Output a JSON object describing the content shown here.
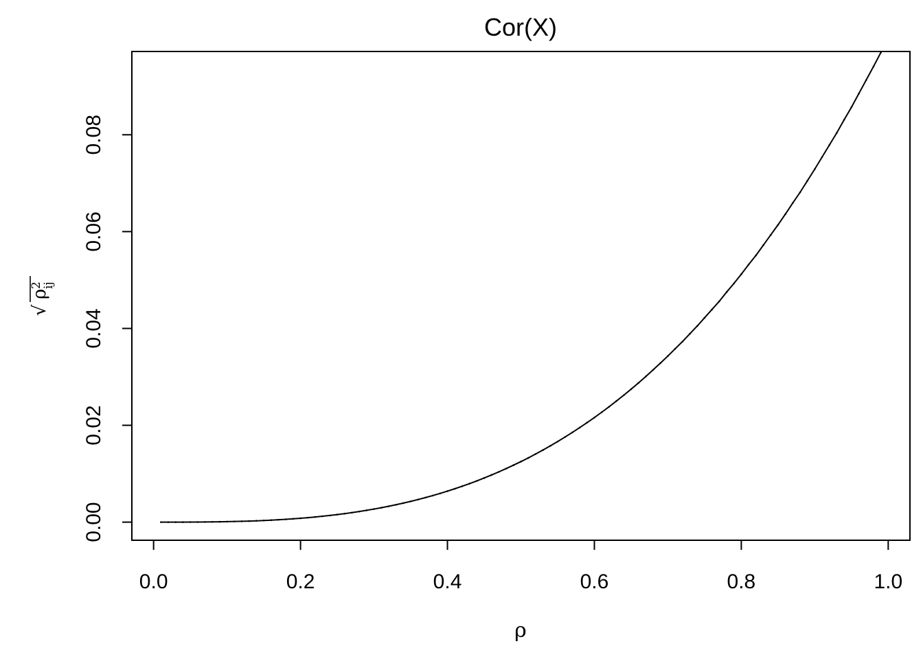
{
  "chart_data": {
    "type": "line",
    "title": "Cor(X)",
    "xlabel": "ρ",
    "ylabel": {
      "base": "ρ",
      "superscript": "2",
      "subscript": "ij",
      "radical": "√"
    },
    "xlim": [
      -0.0296,
      1.0296
    ],
    "ylim": [
      -0.00374,
      0.0972
    ],
    "x_ticks": [
      0.0,
      0.2,
      0.4,
      0.6,
      0.8,
      1.0
    ],
    "x_tick_labels": [
      "0.0",
      "0.2",
      "0.4",
      "0.6",
      "0.8",
      "1.0"
    ],
    "y_ticks": [
      0.0,
      0.02,
      0.04,
      0.06,
      0.08
    ],
    "y_tick_labels": [
      "0.00",
      "0.02",
      "0.04",
      "0.06",
      "0.08"
    ],
    "grid": false,
    "series": [
      {
        "x": [
          0.01,
          0.02,
          0.03,
          0.04,
          0.05,
          0.06,
          0.07,
          0.08,
          0.09,
          0.1,
          0.11,
          0.12,
          0.13,
          0.14,
          0.15,
          0.16,
          0.17,
          0.18,
          0.19,
          0.2,
          0.21,
          0.22,
          0.23,
          0.24,
          0.25,
          0.26,
          0.27,
          0.28,
          0.29,
          0.3,
          0.31,
          0.32,
          0.33,
          0.34,
          0.35,
          0.36,
          0.37,
          0.38,
          0.39,
          0.4,
          0.41,
          0.42,
          0.43,
          0.44,
          0.45,
          0.46,
          0.47,
          0.48,
          0.49,
          0.5,
          0.51,
          0.52,
          0.53,
          0.54,
          0.55,
          0.56,
          0.57,
          0.58,
          0.59,
          0.6,
          0.61,
          0.62,
          0.63,
          0.64,
          0.65,
          0.66,
          0.67,
          0.68,
          0.69,
          0.7,
          0.71,
          0.72,
          0.73,
          0.74,
          0.75,
          0.76,
          0.77,
          0.78,
          0.79,
          0.8,
          0.81,
          0.82,
          0.83,
          0.84,
          0.85,
          0.86,
          0.87,
          0.88,
          0.89,
          0.9,
          0.91,
          0.92,
          0.93,
          0.94,
          0.95,
          0.96,
          0.97,
          0.98,
          0.99
        ],
        "y": [
          1e-07,
          8e-07,
          2.7e-06,
          6.4e-06,
          1.25e-05,
          2.16e-05,
          3.43e-05,
          5.12e-05,
          7.29e-05,
          0.0001,
          0.000133,
          0.000173,
          0.00022,
          0.000274,
          0.000338,
          0.00041,
          0.000491,
          0.000583,
          0.000686,
          0.0008,
          0.000926,
          0.001065,
          0.001217,
          0.001382,
          0.001562,
          0.001757,
          0.001968,
          0.002195,
          0.002439,
          0.0027,
          0.002979,
          0.003277,
          0.003594,
          0.00393,
          0.004287,
          0.004666,
          0.005066,
          0.005487,
          0.005932,
          0.0064,
          0.006892,
          0.007409,
          0.00795,
          0.008518,
          0.009112,
          0.009733,
          0.010383,
          0.011062,
          0.011771,
          0.0125,
          0.01326,
          0.01407,
          0.01489,
          0.01575,
          0.01664,
          0.01757,
          0.01853,
          0.01952,
          0.02055,
          0.0216,
          0.0227,
          0.02383,
          0.02501,
          0.02621,
          0.02746,
          0.02875,
          0.03008,
          0.03145,
          0.03285,
          0.0343,
          0.0358,
          0.0373,
          0.0389,
          0.0405,
          0.0422,
          0.0439,
          0.0456,
          0.0475,
          0.0493,
          0.0512,
          0.0532,
          0.0551,
          0.0572,
          0.0593,
          0.0614,
          0.0636,
          0.0659,
          0.0681,
          0.0705,
          0.0729,
          0.0754,
          0.0779,
          0.0804,
          0.0831,
          0.0857,
          0.0885,
          0.0913,
          0.0941,
          0.097
        ]
      }
    ]
  }
}
